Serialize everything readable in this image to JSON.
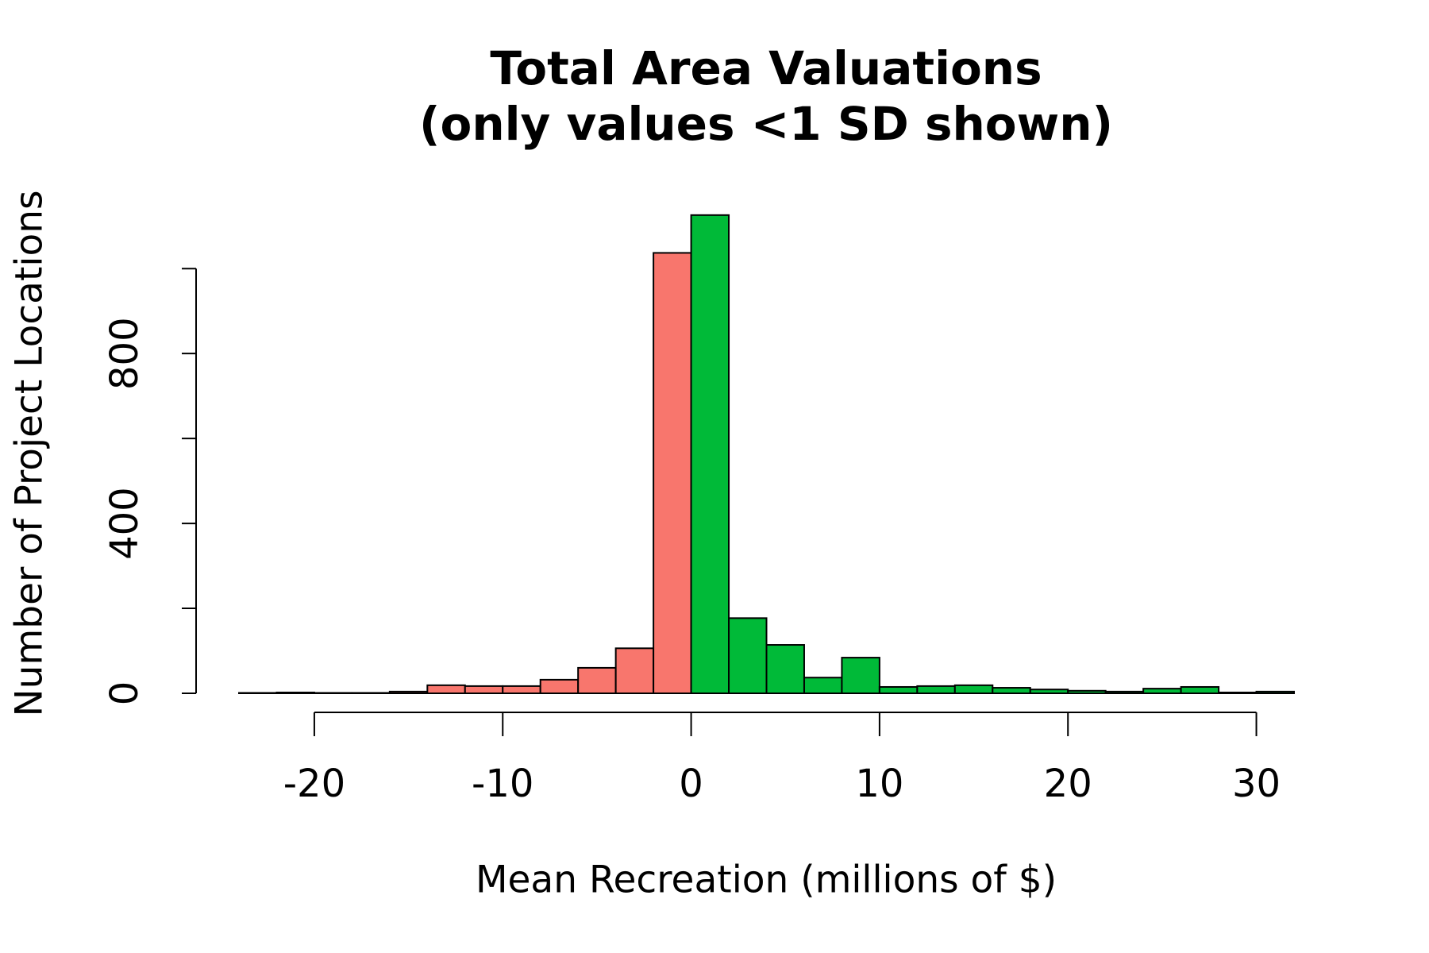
{
  "chart_data": {
    "type": "histogram",
    "title": "Total Area Valuations",
    "subtitle": "(only values <1 SD shown)",
    "x_label": "Mean Recreation (millions of $)",
    "y_label": "Number of Project Locations",
    "bins": [
      -24,
      -22,
      -20,
      -18,
      -16,
      -14,
      -12,
      -10,
      -8,
      -6,
      -4,
      -2,
      0,
      2,
      4,
      6,
      8,
      10,
      12,
      14,
      16,
      18,
      20,
      22,
      24,
      26,
      28,
      30,
      32
    ],
    "values": [
      1,
      2,
      1,
      1,
      4,
      19,
      17,
      17,
      32,
      60,
      106,
      1037,
      1126,
      177,
      114,
      37,
      84,
      15,
      17,
      19,
      13,
      9,
      6,
      4,
      11,
      15,
      2,
      4
    ],
    "colors": [
      "#F8766D",
      "#F8766D",
      "#F8766D",
      "#F8766D",
      "#F8766D",
      "#F8766D",
      "#F8766D",
      "#F8766D",
      "#F8766D",
      "#F8766D",
      "#F8766D",
      "#F8766D",
      "#00BA38",
      "#00BA38",
      "#00BA38",
      "#00BA38",
      "#00BA38",
      "#00BA38",
      "#00BA38",
      "#00BA38",
      "#00BA38",
      "#00BA38",
      "#00BA38",
      "#00BA38",
      "#00BA38",
      "#00BA38",
      "#00BA38",
      "#00BA38"
    ],
    "xlim": [
      -24,
      32
    ],
    "xticks": [
      -20,
      -10,
      0,
      10,
      20,
      30
    ],
    "ylim": [
      0,
      1150
    ],
    "yticks": [
      0,
      {
        "value": 200,
        "label": null
      },
      400,
      {
        "value": 600,
        "label": null
      },
      800,
      {
        "value": 1000,
        "label": null
      }
    ]
  }
}
